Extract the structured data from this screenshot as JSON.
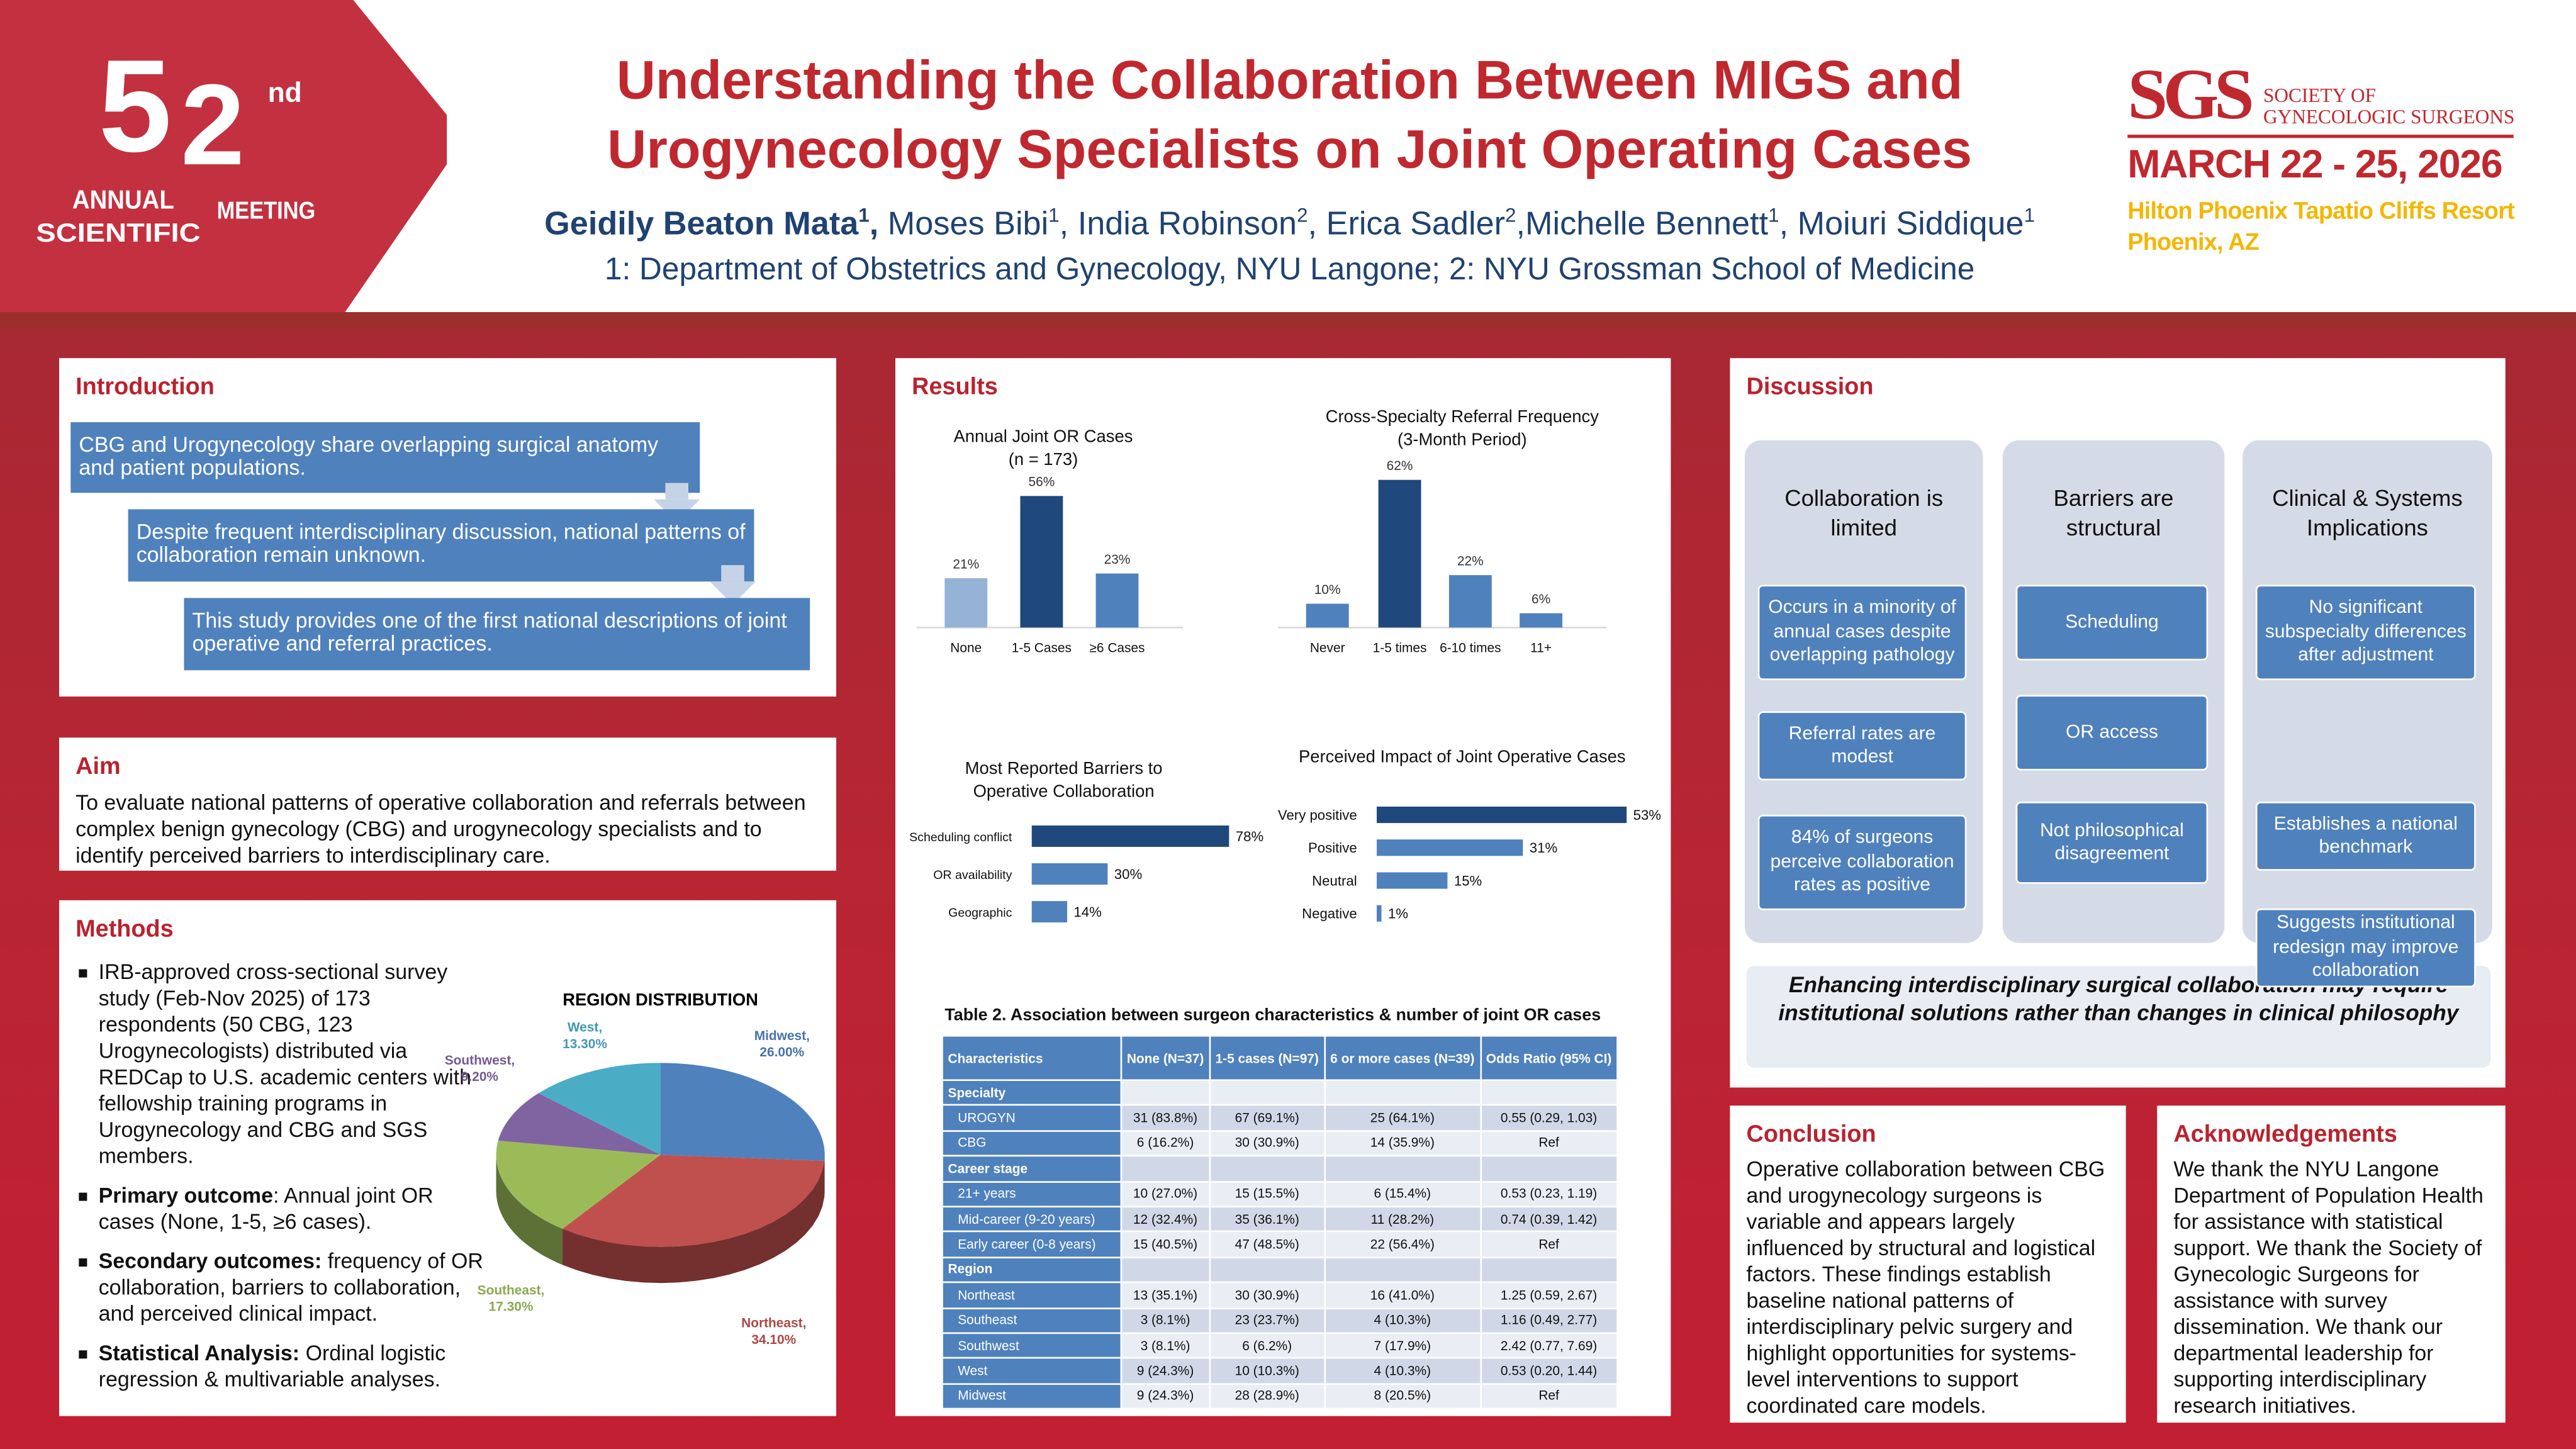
{
  "logo": {
    "number_5": "5",
    "number_2": "2",
    "suffix": "nd",
    "line1": "ANNUAL",
    "line2": "SCIENTIFIC",
    "line3": "MEETING"
  },
  "title": {
    "line1": "Understanding the Collaboration Between MIGS and",
    "line2": "Urogynecology Specialists on Joint Operating Cases"
  },
  "authors": [
    {
      "name": "Geidily Beaton Mata",
      "sup": "1"
    },
    {
      "name": "Moses Bibi",
      "sup": "1"
    },
    {
      "name": "India Robinson",
      "sup": "2"
    },
    {
      "name": "Erica Sadler",
      "sup": "2"
    },
    {
      "name": "Michelle Bennett",
      "sup": "1"
    },
    {
      "name": "Moiuri Siddique",
      "sup": "1"
    }
  ],
  "affiliations": "1: Department of Obstetrics and Gynecology, NYU Langone; 2: NYU Grossman School of Medicine",
  "society": {
    "abbr": "SGS",
    "line1": "SOCIETY OF",
    "line2": "GYNECOLOGIC SURGEONS",
    "dates": "MARCH 22 - 25, 2026",
    "venue": "Hilton Phoenix Tapatio Cliffs Resort",
    "city": "Phoenix, AZ"
  },
  "introduction": {
    "heading": "Introduction",
    "steps": [
      "CBG and Urogynecology share overlapping surgical anatomy and patient populations.",
      "Despite frequent interdisciplinary discussion, national patterns of collaboration remain unknown.",
      "This study provides one of the first national descriptions of joint operative and referral practices."
    ]
  },
  "aim": {
    "heading": "Aim",
    "text": "To evaluate national patterns of operative collaboration and referrals between complex benign gynecology (CBG) and urogynecology specialists and to identify perceived barriers to interdisciplinary care."
  },
  "methods": {
    "heading": "Methods",
    "bullets": [
      {
        "lead": "",
        "text": "IRB-approved cross-sectional survey study (Feb-Nov 2025) of 173 respondents (50 CBG, 123 Urogynecologists) distributed via REDCap to U.S. academic centers with fellowship training programs in Urogynecology and CBG and SGS members."
      },
      {
        "lead": "Primary outcome",
        "text": ": Annual joint OR cases (None, 1-5, ≥6 cases)."
      },
      {
        "lead": "Secondary outcomes:",
        "text": " frequency of OR collaboration, barriers to collaboration, and perceived clinical impact."
      },
      {
        "lead": "Statistical Analysis:",
        "text": " Ordinal logistic regression & multivariable analyses."
      }
    ]
  },
  "results_heading": "Results",
  "chart_data": [
    {
      "type": "bar",
      "title": "Annual Joint OR Cases",
      "subtitle": "(n = 173)",
      "categories": [
        "None",
        "1-5 Cases",
        "≥6 Cases"
      ],
      "values": [
        21,
        56,
        23
      ],
      "labels": [
        "21%",
        "56%",
        "23%"
      ],
      "colors": [
        "#95b3d7",
        "#1f497d",
        "#4f81bd"
      ]
    },
    {
      "type": "bar",
      "title": "Cross-Specialty Referral Frequency",
      "subtitle": "(3-Month Period)",
      "categories": [
        "Never",
        "1-5 times",
        "6-10 times",
        "11+"
      ],
      "values": [
        10,
        62,
        22,
        6
      ],
      "labels": [
        "10%",
        "62%",
        "22%",
        "6%"
      ],
      "colors": [
        "#4f81bd",
        "#1f497d",
        "#4f81bd",
        "#4f81bd"
      ]
    },
    {
      "type": "bar",
      "orientation": "horizontal",
      "title": "Most Reported Barriers to Operative Collaboration",
      "categories": [
        "Scheduling conflict",
        "OR availability",
        "Geographic"
      ],
      "values": [
        78,
        30,
        14
      ],
      "labels": [
        "78%",
        "30%",
        "14%"
      ],
      "colors": [
        "#1f497d",
        "#4f81bd",
        "#4f81bd"
      ]
    },
    {
      "type": "bar",
      "orientation": "horizontal",
      "title": "Perceived Impact of Joint Operative Cases",
      "categories": [
        "Very positive",
        "Positive",
        "Neutral",
        "Negative"
      ],
      "values": [
        53,
        31,
        15,
        1
      ],
      "labels": [
        "53%",
        "31%",
        "15%",
        "1%"
      ],
      "colors": [
        "#1f497d",
        "#4f81bd",
        "#4f81bd",
        "#4f81bd"
      ]
    },
    {
      "type": "pie",
      "title": "REGION DISTRIBUTION",
      "categories": [
        "Midwest",
        "Northeast",
        "Southeast",
        "Southwest",
        "West"
      ],
      "values": [
        26.0,
        34.1,
        17.3,
        9.2,
        13.3
      ],
      "labels": [
        "Midwest, 26.00%",
        "Northeast, 34.10%",
        "Southeast, 17.30%",
        "Southwest, 9.20%",
        "West, 13.30%"
      ],
      "colors": [
        "#4f81bd",
        "#c0504d",
        "#9bbb59",
        "#8064a2",
        "#4bacc6"
      ]
    }
  ],
  "table": {
    "caption": "Table 2. Association between surgeon characteristics & number of joint OR cases",
    "headers": [
      "Characteristics",
      "None (N=37)",
      "1-5 cases (N=97)",
      "6 or more cases (N=39)",
      "Odds Ratio (95% CI)"
    ],
    "rows": [
      {
        "group": true,
        "label": "Specialty",
        "cells": [
          "",
          "",
          "",
          ""
        ]
      },
      {
        "label": "UROGYN",
        "cells": [
          "31 (83.8%)",
          "67 (69.1%)",
          "25 (64.1%)",
          "0.55 (0.29, 1.03)"
        ]
      },
      {
        "label": "CBG",
        "cells": [
          "6 (16.2%)",
          "30 (30.9%)",
          "14 (35.9%)",
          "Ref"
        ]
      },
      {
        "group": true,
        "label": "Career stage",
        "cells": [
          "",
          "",
          "",
          ""
        ]
      },
      {
        "label": "21+ years",
        "cells": [
          "10 (27.0%)",
          "15 (15.5%)",
          "6 (15.4%)",
          "0.53 (0.23, 1.19)"
        ]
      },
      {
        "label": "Mid-career (9-20 years)",
        "cells": [
          "12 (32.4%)",
          "35 (36.1%)",
          "11 (28.2%)",
          "0.74 (0.39, 1.42)"
        ]
      },
      {
        "label": "Early career (0-8 years)",
        "cells": [
          "15 (40.5%)",
          "47 (48.5%)",
          "22 (56.4%)",
          "Ref"
        ]
      },
      {
        "group": true,
        "label": "Region",
        "cells": [
          "",
          "",
          "",
          ""
        ]
      },
      {
        "label": "Northeast",
        "cells": [
          "13 (35.1%)",
          "30 (30.9%)",
          "16 (41.0%)",
          "1.25 (0.59, 2.67)"
        ]
      },
      {
        "label": "Southeast",
        "cells": [
          "3 (8.1%)",
          "23 (23.7%)",
          "4 (10.3%)",
          "1.16 (0.49, 2.77)"
        ]
      },
      {
        "label": "Southwest",
        "cells": [
          "3 (8.1%)",
          "6 (6.2%)",
          "7 (17.9%)",
          "2.42 (0.77, 7.69)"
        ]
      },
      {
        "label": "West",
        "cells": [
          "9 (24.3%)",
          "10 (10.3%)",
          "4 (10.3%)",
          "0.53 (0.20, 1.44)"
        ]
      },
      {
        "label": "Midwest",
        "cells": [
          "9 (24.3%)",
          "28 (28.9%)",
          "8 (20.5%)",
          "Ref"
        ]
      }
    ]
  },
  "discussion": {
    "heading": "Discussion",
    "columns": [
      {
        "title": "Collaboration is limited",
        "items": [
          "Occurs in a minority of annual cases despite overlapping pathology",
          "Referral rates are modest",
          "84% of surgeons perceive collaboration rates as positive"
        ]
      },
      {
        "title": "Barriers are structural",
        "items": [
          "Scheduling",
          "OR access",
          "Not philosophical disagreement"
        ]
      },
      {
        "title": "Clinical & Systems Implications",
        "items": [
          "No significant subspecialty differences after adjustment",
          "Establishes a national benchmark",
          "Suggests institutional redesign may improve collaboration"
        ]
      }
    ],
    "conclusion_statement": "Enhancing interdisciplinary surgical collaboration may require institutional solutions rather than changes in clinical philosophy"
  },
  "conclusion": {
    "heading": "Conclusion",
    "text": "Operative collaboration between CBG and urogynecology surgeons is variable and appears largely influenced by structural and logistical factors. These findings establish baseline national patterns of interdisciplinary pelvic surgery and highlight opportunities for systems-level interventions to support coordinated care models."
  },
  "acknowledgements": {
    "heading": "Acknowledgements",
    "text": "We thank the NYU Langone Department of Population Health for assistance with statistical support. We thank the Society of Gynecologic Surgeons for assistance with survey dissemination. We thank our departmental leadership for supporting interdisciplinary research initiatives."
  }
}
